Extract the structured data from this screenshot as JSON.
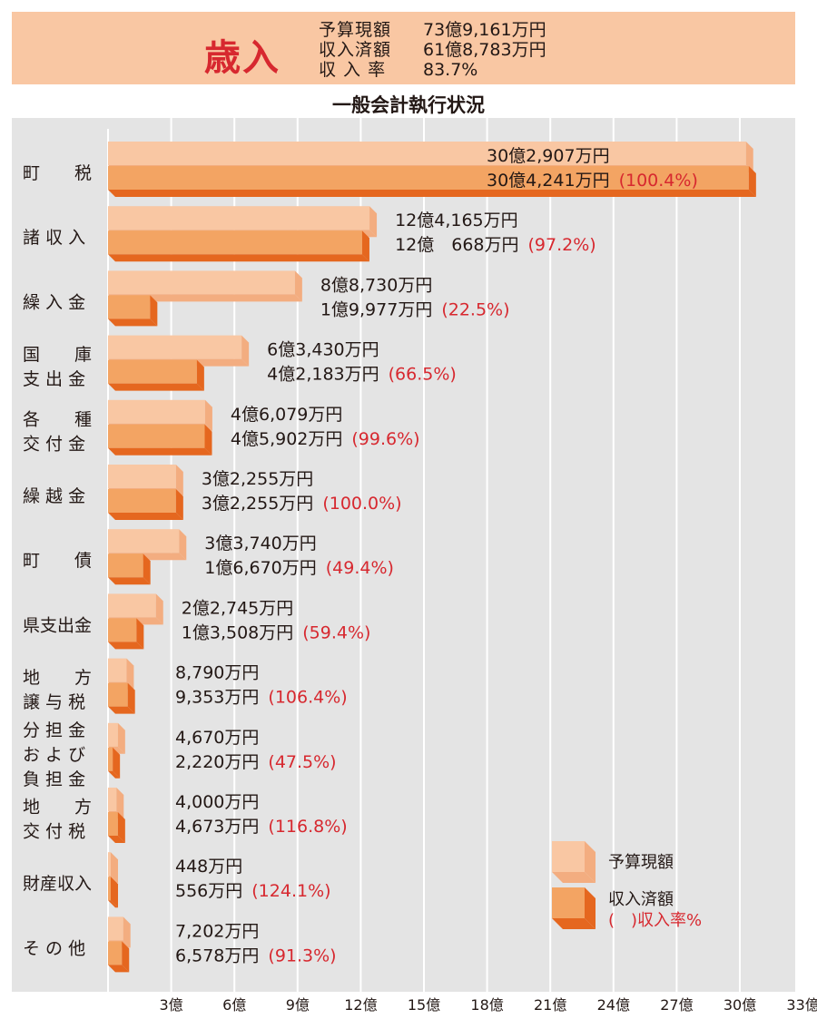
{
  "header": {
    "title": "歳入",
    "rows": [
      {
        "label": "予算現額",
        "value": "73億9,161万円"
      },
      {
        "label": "収入済額",
        "value": "61億8,783万円"
      },
      {
        "label": "収 入 率",
        "value": "83.7%"
      }
    ]
  },
  "subtitle": "一般会計執行状況",
  "legend": {
    "budget": "予算現額",
    "actual": "収入済額",
    "rate": "(　)収入率%"
  },
  "colors": {
    "budget_face": "#f9c7a3",
    "budget_side": "#f3ad80",
    "actual_face": "#f3a463",
    "actual_side": "#e5671f",
    "panel": "#e4e4e4",
    "rate_text": "#d7282f"
  },
  "chart_data": {
    "type": "bar",
    "orientation": "horizontal",
    "unit": "億円",
    "xlim": [
      0,
      33
    ],
    "xticks": [
      "3億",
      "6億",
      "9億",
      "12億",
      "15億",
      "18億",
      "21億",
      "24億",
      "27億",
      "30億",
      "33億"
    ],
    "grid": true,
    "legend_position": "bottom-right",
    "categories": [
      {
        "label_lines": [
          "町　　税"
        ],
        "budget": 30.2907,
        "actual": 30.4241,
        "budget_text": "30億2,907万円",
        "actual_text": "30億4,241万円",
        "rate": "(100.4%)"
      },
      {
        "label_lines": [
          "諸 収 入"
        ],
        "budget": 12.4165,
        "actual": 12.0668,
        "budget_text": "12億4,165万円",
        "actual_text": "12億　668万円",
        "rate": "(97.2%)"
      },
      {
        "label_lines": [
          "繰 入 金"
        ],
        "budget": 8.873,
        "actual": 1.9977,
        "budget_text": "8億8,730万円",
        "actual_text": "1億9,977万円",
        "rate": "(22.5%)"
      },
      {
        "label_lines": [
          "国　　庫",
          "支 出 金"
        ],
        "budget": 6.343,
        "actual": 4.2183,
        "budget_text": "6億3,430万円",
        "actual_text": "4億2,183万円",
        "rate": "(66.5%)"
      },
      {
        "label_lines": [
          "各　　種",
          "交 付 金"
        ],
        "budget": 4.6079,
        "actual": 4.5902,
        "budget_text": "4億6,079万円",
        "actual_text": "4億5,902万円",
        "rate": "(99.6%)"
      },
      {
        "label_lines": [
          "繰 越 金"
        ],
        "budget": 3.2255,
        "actual": 3.2255,
        "budget_text": "3億2,255万円",
        "actual_text": "3億2,255万円",
        "rate": "(100.0%)"
      },
      {
        "label_lines": [
          "町　　債"
        ],
        "budget": 3.374,
        "actual": 1.667,
        "budget_text": "3億3,740万円",
        "actual_text": "1億6,670万円",
        "rate": "(49.4%)"
      },
      {
        "label_lines": [
          "県支出金"
        ],
        "budget": 2.2745,
        "actual": 1.3508,
        "budget_text": "2億2,745万円",
        "actual_text": "1億3,508万円",
        "rate": "(59.4%)"
      },
      {
        "label_lines": [
          "地　　方",
          "譲 与 税"
        ],
        "budget": 0.879,
        "actual": 0.9353,
        "budget_text": "8,790万円",
        "actual_text": "9,353万円",
        "rate": "(106.4%)"
      },
      {
        "label_lines": [
          "分 担 金",
          "お よ び",
          "負 担 金"
        ],
        "budget": 0.467,
        "actual": 0.222,
        "budget_text": "4,670万円",
        "actual_text": "2,220万円",
        "rate": "(47.5%)"
      },
      {
        "label_lines": [
          "地　　方",
          "交 付 税"
        ],
        "budget": 0.4,
        "actual": 0.4673,
        "budget_text": "4,000万円",
        "actual_text": "4,673万円",
        "rate": "(116.8%)"
      },
      {
        "label_lines": [
          "財産収入"
        ],
        "budget": 0.0448,
        "actual": 0.0556,
        "budget_text": "448万円",
        "actual_text": "556万円",
        "rate": "(124.1%)"
      },
      {
        "label_lines": [
          "そ の 他"
        ],
        "budget": 0.7202,
        "actual": 0.6578,
        "budget_text": "7,202万円",
        "actual_text": "6,578万円",
        "rate": "(91.3%)"
      }
    ]
  }
}
